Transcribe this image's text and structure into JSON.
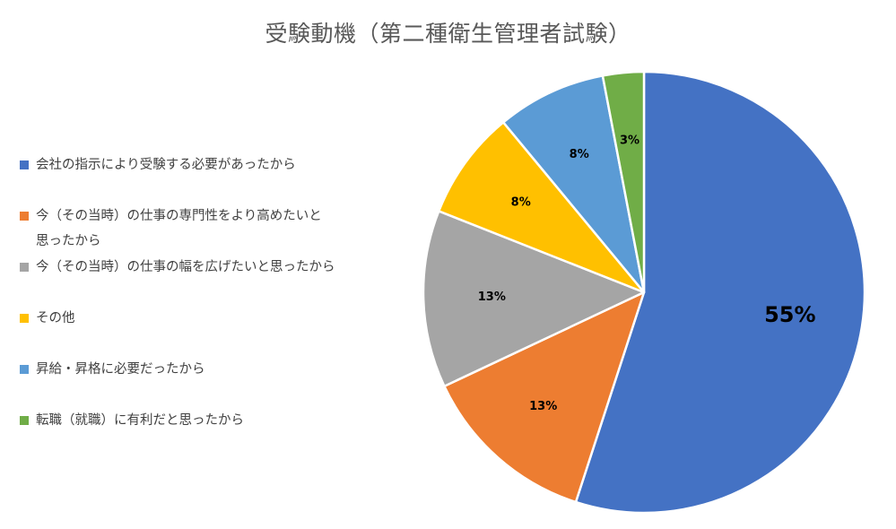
{
  "chart_data": {
    "type": "pie",
    "title": "受験動機（第二種衛生管理者試験）",
    "legend_position": "left",
    "series": [
      {
        "name": "会社の指示により受験する必要があったから",
        "value": 55,
        "label": "55%",
        "color": "#4472C4"
      },
      {
        "name": "今（その当時）の仕事の専門性をより高めたいと\n思ったから",
        "value": 13,
        "label": "13%",
        "color": "#ED7D31"
      },
      {
        "name": "今（その当時）の仕事の幅を広げたいと思ったから",
        "value": 13,
        "label": "13%",
        "color": "#A5A5A5"
      },
      {
        "name": "その他",
        "value": 8,
        "label": "8%",
        "color": "#FFC000"
      },
      {
        "name": "昇給・昇格に必要だったから",
        "value": 8,
        "label": "8%",
        "color": "#5B9BD5"
      },
      {
        "name": "転職（就職）に有利だと思ったから",
        "value": 3,
        "label": "3%",
        "color": "#70AD47"
      }
    ]
  }
}
